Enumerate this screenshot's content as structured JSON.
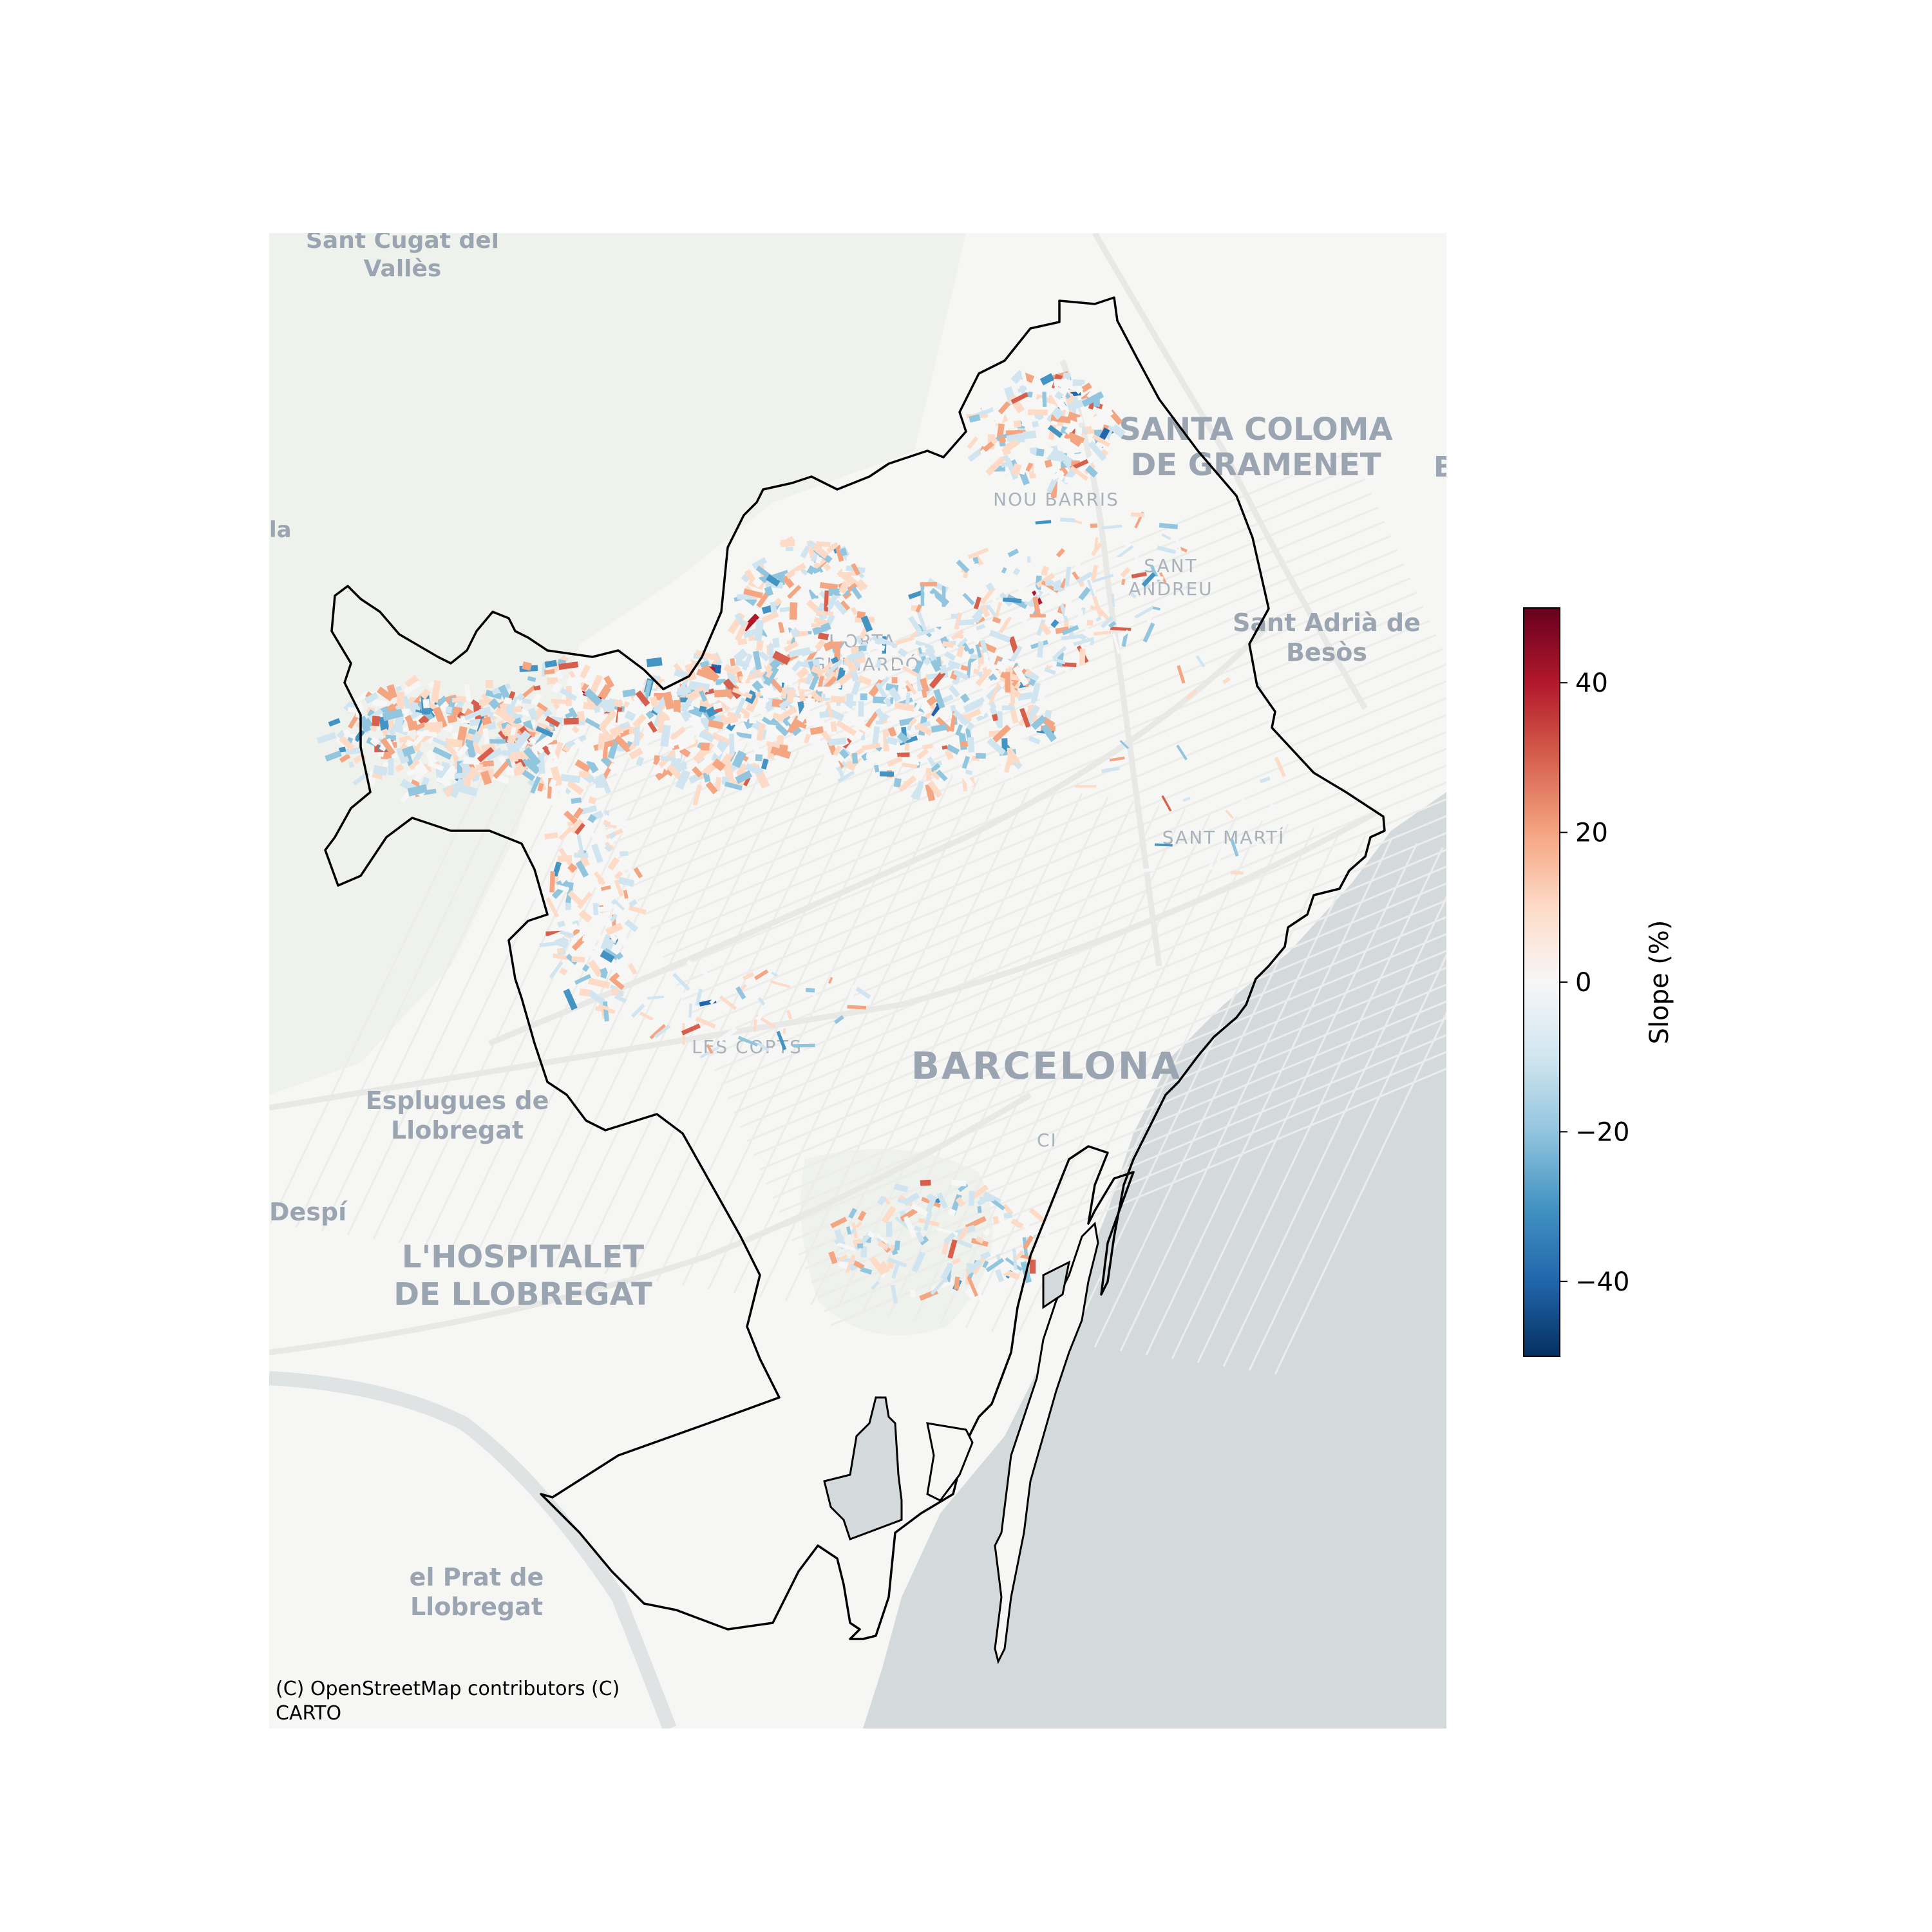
{
  "map": {
    "basemap": "CartoDB Positron",
    "attribution_line1": "(C) OpenStreetMap contributors (C)",
    "attribution_line2": "CARTO",
    "sea_color": "#d4dadc",
    "land_color": "#f6f6f4",
    "park_color": "#eef1ec",
    "boundary_color": "#000000",
    "places": [
      {
        "id": "sant-cugat",
        "lines": [
          "Sant Cugat del",
          "Vallès"
        ]
      },
      {
        "id": "santa-coloma",
        "lines": [
          "SANTA COLOMA",
          "DE GRAMENET"
        ]
      },
      {
        "id": "nou-barris",
        "lines": [
          "NOU BARRIS"
        ]
      },
      {
        "id": "sant-andreu",
        "lines": [
          "SANT",
          "ANDREU"
        ]
      },
      {
        "id": "sant-adria",
        "lines": [
          "Sant Adrià de",
          "Besòs"
        ]
      },
      {
        "id": "horta-guinardo",
        "lines": [
          "HORTA-",
          "GUINARDÓ"
        ]
      },
      {
        "id": "sant-marti",
        "lines": [
          "SANT MARTÍ"
        ]
      },
      {
        "id": "les-corts",
        "lines": [
          "LES CORTS"
        ]
      },
      {
        "id": "barcelona",
        "lines": [
          "BARCELONA"
        ]
      },
      {
        "id": "esplugues",
        "lines": [
          "Esplugues de",
          "Llobregat"
        ]
      },
      {
        "id": "despi",
        "lines": [
          "Despí"
        ]
      },
      {
        "id": "hospitalet",
        "lines": [
          "L'HOSPITALET",
          "DE LLOBREGAT"
        ]
      },
      {
        "id": "el-prat",
        "lines": [
          "el Prat de",
          "Llobregat"
        ]
      },
      {
        "id": "partial-la",
        "lines": [
          "la"
        ]
      },
      {
        "id": "partial-b",
        "lines": [
          "B"
        ]
      },
      {
        "id": "ciutat-vella",
        "lines": [
          "CI"
        ]
      }
    ]
  },
  "colorbar": {
    "label": "Slope (%)",
    "colormap": "RdBu_r",
    "min": -50,
    "max": 50,
    "ticks": [
      {
        "value": 40,
        "label": "40"
      },
      {
        "value": 20,
        "label": "20"
      },
      {
        "value": 0,
        "label": "0"
      },
      {
        "value": -20,
        "label": "−20"
      },
      {
        "value": -40,
        "label": "−40"
      }
    ],
    "stops": [
      "#053061",
      "#2166ac",
      "#4393c3",
      "#92c5de",
      "#d1e5f0",
      "#f7f7f7",
      "#fddbc7",
      "#f4a582",
      "#d6604d",
      "#b2182b",
      "#67001f"
    ]
  }
}
